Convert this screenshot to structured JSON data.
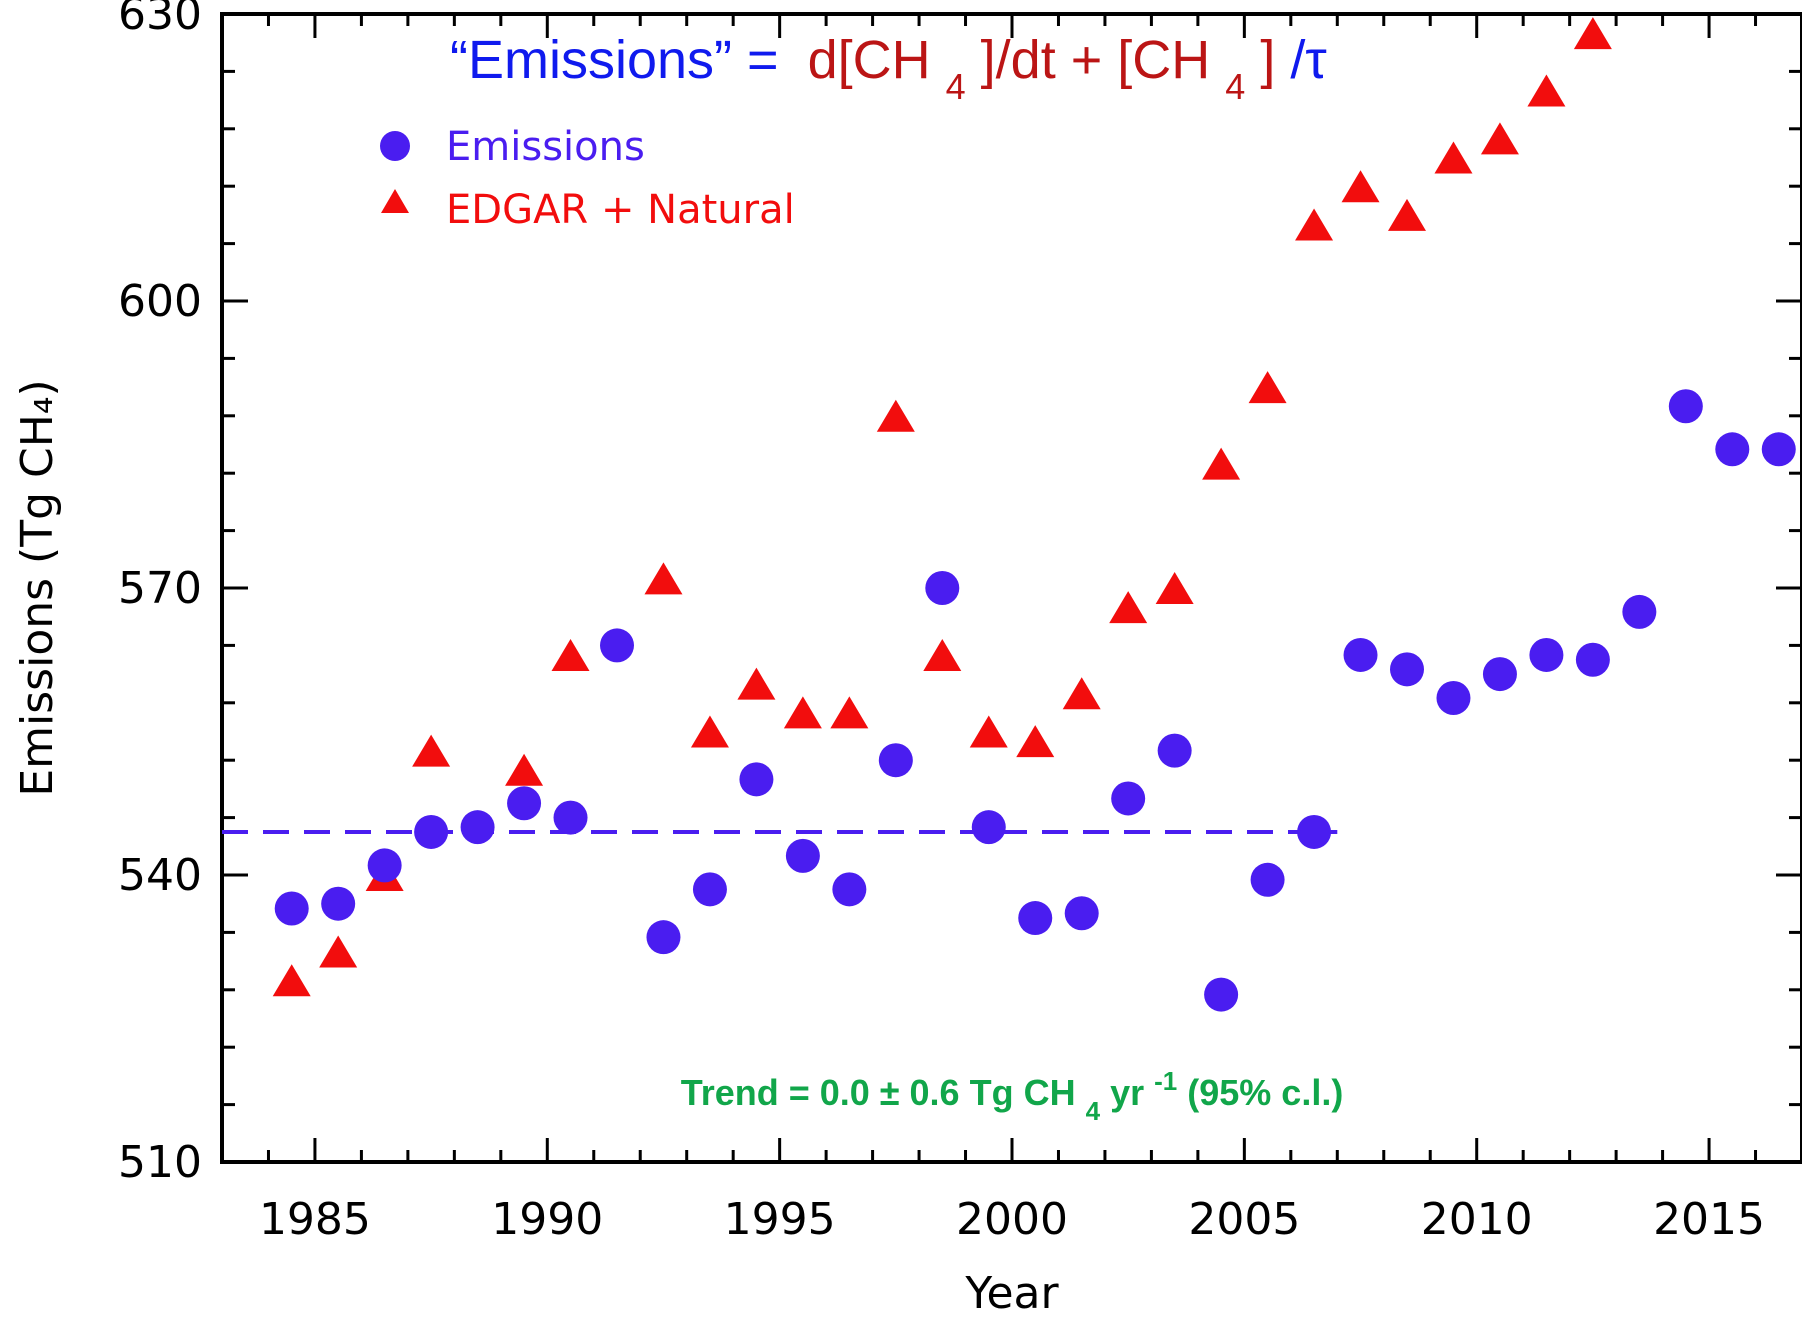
{
  "chart_data": {
    "type": "scatter",
    "title": "",
    "xlabel": "Year",
    "ylabel": "Emissions (Tg CH₄)",
    "xlim": [
      1983,
      2017
    ],
    "ylim": [
      510,
      630
    ],
    "x_ticks": [
      1985,
      1990,
      1995,
      2000,
      2005,
      2010,
      2015
    ],
    "x_tick_labels": [
      "1985",
      "1990",
      "1995",
      "2000",
      "2005",
      "2010",
      "2015"
    ],
    "y_ticks": [
      510,
      540,
      570,
      600,
      630
    ],
    "y_tick_labels": [
      "510",
      "540",
      "570",
      "600",
      "630"
    ],
    "grid": false,
    "legend_position": "top-left",
    "series": [
      {
        "name": "Emissions",
        "marker": "circle",
        "color": "#4a1df0",
        "x": [
          1984.5,
          1985.5,
          1986.5,
          1987.5,
          1988.5,
          1989.5,
          1990.5,
          1991.5,
          1992.5,
          1993.5,
          1994.5,
          1995.5,
          1996.5,
          1997.5,
          1998.5,
          1999.5,
          2000.5,
          2001.5,
          2002.5,
          2003.5,
          2004.5,
          2005.5,
          2006.5,
          2007.5,
          2008.5,
          2009.5,
          2010.5,
          2011.5,
          2012.5,
          2013.5,
          2014.5,
          2015.5,
          2016.5
        ],
        "y": [
          536.5,
          537.0,
          541.0,
          544.5,
          545.0,
          547.5,
          546.0,
          564.0,
          533.5,
          538.5,
          550.0,
          542.0,
          538.5,
          552.0,
          570.0,
          545.0,
          535.5,
          536.0,
          548.0,
          553.0,
          527.5,
          539.5,
          544.5,
          563.0,
          561.5,
          558.5,
          561.0,
          563.0,
          562.5,
          567.5,
          589.0,
          584.5,
          584.5
        ]
      },
      {
        "name": "EDGAR + Natural",
        "marker": "triangle",
        "color": "#f20d0d",
        "x": [
          1984.5,
          1985.5,
          1986.5,
          1987.5,
          1989.5,
          1990.5,
          1992.5,
          1993.5,
          1994.5,
          1995.5,
          1996.5,
          1997.5,
          1998.5,
          1999.5,
          2000.5,
          2001.5,
          2002.5,
          2003.5,
          2004.5,
          2005.5,
          2006.5,
          2007.5,
          2008.5,
          2009.5,
          2010.5,
          2011.5,
          2012.5
        ],
        "y": [
          529.0,
          532.0,
          540.0,
          553.0,
          551.0,
          563.0,
          571.0,
          555.0,
          560.0,
          557.0,
          557.0,
          588.0,
          563.0,
          555.0,
          554.0,
          559.0,
          568.0,
          570.0,
          583.0,
          591.0,
          608.0,
          612.0,
          609.0,
          615.0,
          617.0,
          622.0,
          628.0
        ]
      }
    ],
    "trend_line": {
      "style": "dashed",
      "color": "#4a1df0",
      "x": [
        1983,
        2007
      ],
      "y": [
        544.5,
        544.5
      ]
    },
    "annotations": {
      "formula": {
        "part1": "“Emissions” =",
        "part2a": "d[CH",
        "sub1": "4",
        "part2b": "]/dt + [CH",
        "sub2": "4",
        "part2c": "]",
        "part3": "/τ",
        "color_blue": "#0f1aee",
        "color_red": "#bb1515"
      },
      "trend": {
        "a": "Trend = 0.0 ± 0.6 Tg CH",
        "sub": "4",
        "b": " yr",
        "sup": "-1",
        "c": " (95% c.l.)",
        "color": "#11a64a"
      }
    }
  }
}
